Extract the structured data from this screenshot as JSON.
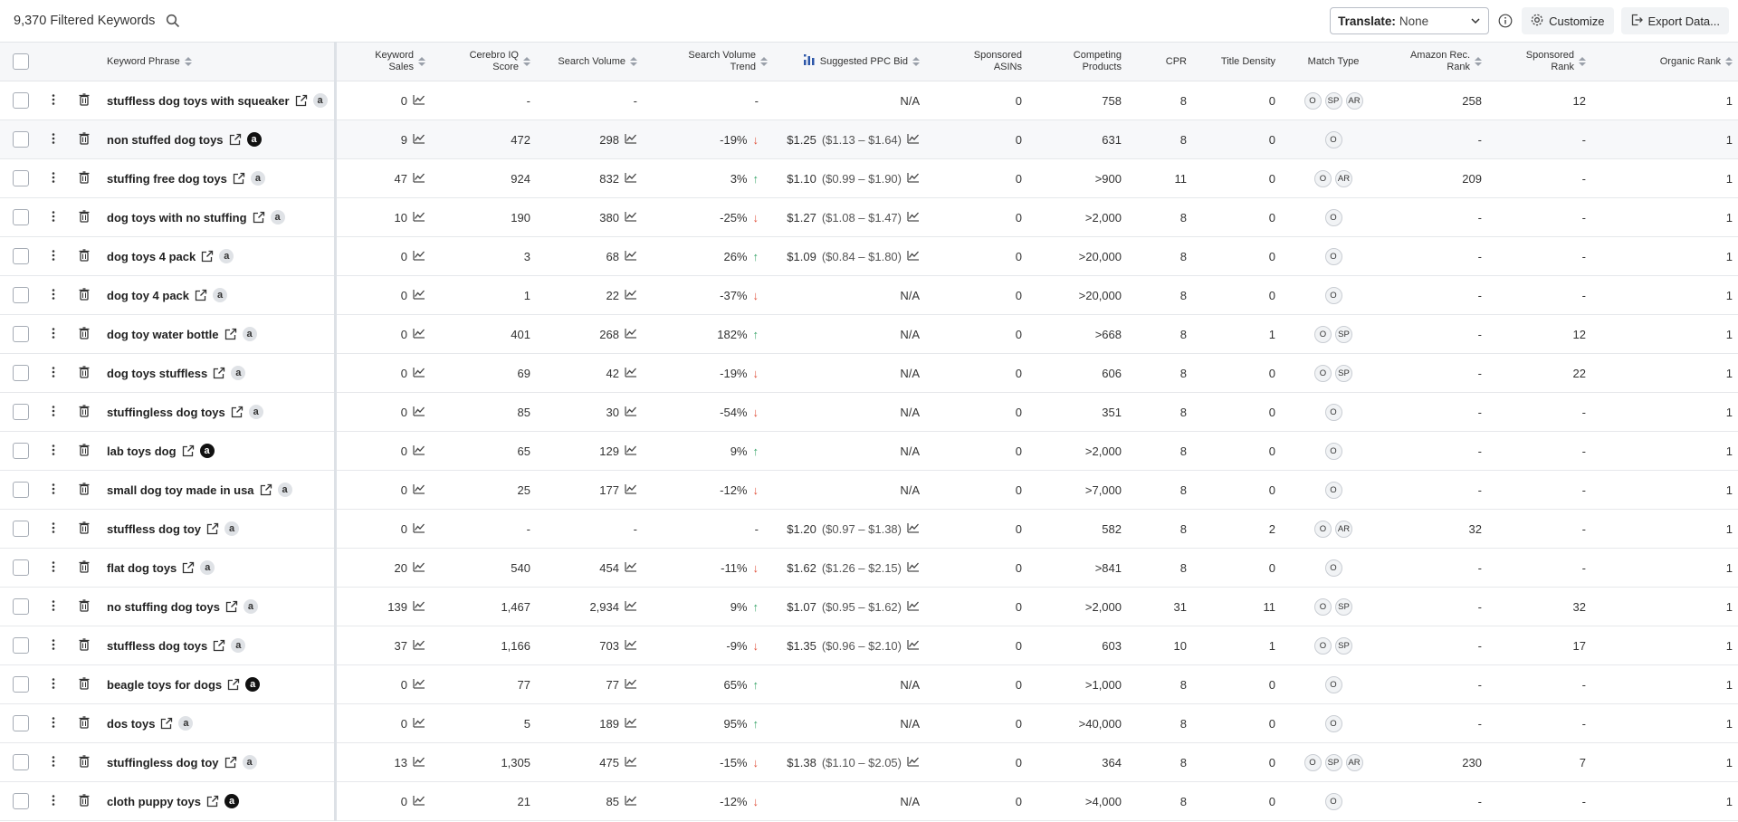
{
  "header": {
    "filtered_count": "9,370 Filtered Keywords",
    "translate_label": "Translate:",
    "translate_value": "None",
    "customize_label": "Customize",
    "export_label": "Export Data..."
  },
  "columns": {
    "keyword_phrase": "Keyword Phrase",
    "keyword_sales": [
      "Keyword",
      "Sales"
    ],
    "cerebro_iq": [
      "Cerebro IQ",
      "Score"
    ],
    "search_volume": "Search Volume",
    "sv_trend": [
      "Search Volume",
      "Trend"
    ],
    "ppc_bid": "Suggested PPC Bid",
    "sponsored_asins": [
      "Sponsored",
      "ASINs"
    ],
    "competing_products": [
      "Competing",
      "Products"
    ],
    "cpr": "CPR",
    "title_density": "Title Density",
    "match_type": "Match Type",
    "amazon_rec_rank": [
      "Amazon Rec.",
      "Rank"
    ],
    "sponsored_rank": [
      "Sponsored",
      "Rank"
    ],
    "organic_rank": "Organic Rank"
  },
  "rows": [
    {
      "keyword": "stuffless dog toys with squeaker",
      "amz": "light",
      "sales": "0",
      "iq": "-",
      "sv": "-",
      "trend": "-",
      "trend_dir": "",
      "bid": "N/A",
      "bid_range": "",
      "sp_asins": "0",
      "competing": "758",
      "cpr": "8",
      "title_density": "0",
      "match": [
        "O",
        "SP",
        "AR"
      ],
      "amz_rank": "258",
      "sp_rank": "12",
      "org_rank": "1"
    },
    {
      "keyword": "non stuffed dog toys",
      "amz": "dark",
      "sales": "9",
      "iq": "472",
      "sv": "298",
      "trend": "-19%",
      "trend_dir": "down",
      "bid": "$1.25",
      "bid_range": "($1.13 – $1.64)",
      "sp_asins": "0",
      "competing": "631",
      "cpr": "8",
      "title_density": "0",
      "match": [
        "O"
      ],
      "amz_rank": "-",
      "sp_rank": "-",
      "org_rank": "1"
    },
    {
      "keyword": "stuffing free dog toys",
      "amz": "light",
      "sales": "47",
      "iq": "924",
      "sv": "832",
      "trend": "3%",
      "trend_dir": "up",
      "bid": "$1.10",
      "bid_range": "($0.99 – $1.90)",
      "sp_asins": "0",
      "competing": ">900",
      "cpr": "11",
      "title_density": "0",
      "match": [
        "O",
        "AR"
      ],
      "amz_rank": "209",
      "sp_rank": "-",
      "org_rank": "1"
    },
    {
      "keyword": "dog toys with no stuffing",
      "amz": "light",
      "sales": "10",
      "iq": "190",
      "sv": "380",
      "trend": "-25%",
      "trend_dir": "down",
      "bid": "$1.27",
      "bid_range": "($1.08 – $1.47)",
      "sp_asins": "0",
      "competing": ">2,000",
      "cpr": "8",
      "title_density": "0",
      "match": [
        "O"
      ],
      "amz_rank": "-",
      "sp_rank": "-",
      "org_rank": "1"
    },
    {
      "keyword": "dog toys 4 pack",
      "amz": "light",
      "sales": "0",
      "iq": "3",
      "sv": "68",
      "trend": "26%",
      "trend_dir": "up",
      "bid": "$1.09",
      "bid_range": "($0.84 – $1.80)",
      "sp_asins": "0",
      "competing": ">20,000",
      "cpr": "8",
      "title_density": "0",
      "match": [
        "O"
      ],
      "amz_rank": "-",
      "sp_rank": "-",
      "org_rank": "1"
    },
    {
      "keyword": "dog toy 4 pack",
      "amz": "light",
      "sales": "0",
      "iq": "1",
      "sv": "22",
      "trend": "-37%",
      "trend_dir": "down",
      "bid": "N/A",
      "bid_range": "",
      "sp_asins": "0",
      "competing": ">20,000",
      "cpr": "8",
      "title_density": "0",
      "match": [
        "O"
      ],
      "amz_rank": "-",
      "sp_rank": "-",
      "org_rank": "1"
    },
    {
      "keyword": "dog toy water bottle",
      "amz": "light",
      "sales": "0",
      "iq": "401",
      "sv": "268",
      "trend": "182%",
      "trend_dir": "up",
      "bid": "N/A",
      "bid_range": "",
      "sp_asins": "0",
      "competing": ">668",
      "cpr": "8",
      "title_density": "1",
      "match": [
        "O",
        "SP"
      ],
      "amz_rank": "-",
      "sp_rank": "12",
      "org_rank": "1"
    },
    {
      "keyword": "dog toys stuffless",
      "amz": "light",
      "sales": "0",
      "iq": "69",
      "sv": "42",
      "trend": "-19%",
      "trend_dir": "down",
      "bid": "N/A",
      "bid_range": "",
      "sp_asins": "0",
      "competing": "606",
      "cpr": "8",
      "title_density": "0",
      "match": [
        "O",
        "SP"
      ],
      "amz_rank": "-",
      "sp_rank": "22",
      "org_rank": "1"
    },
    {
      "keyword": "stuffingless dog toys",
      "amz": "light",
      "sales": "0",
      "iq": "85",
      "sv": "30",
      "trend": "-54%",
      "trend_dir": "down",
      "bid": "N/A",
      "bid_range": "",
      "sp_asins": "0",
      "competing": "351",
      "cpr": "8",
      "title_density": "0",
      "match": [
        "O"
      ],
      "amz_rank": "-",
      "sp_rank": "-",
      "org_rank": "1"
    },
    {
      "keyword": "lab toys dog",
      "amz": "dark",
      "sales": "0",
      "iq": "65",
      "sv": "129",
      "trend": "9%",
      "trend_dir": "up",
      "bid": "N/A",
      "bid_range": "",
      "sp_asins": "0",
      "competing": ">2,000",
      "cpr": "8",
      "title_density": "0",
      "match": [
        "O"
      ],
      "amz_rank": "-",
      "sp_rank": "-",
      "org_rank": "1"
    },
    {
      "keyword": "small dog toy made in usa",
      "amz": "light",
      "sales": "0",
      "iq": "25",
      "sv": "177",
      "trend": "-12%",
      "trend_dir": "down",
      "bid": "N/A",
      "bid_range": "",
      "sp_asins": "0",
      "competing": ">7,000",
      "cpr": "8",
      "title_density": "0",
      "match": [
        "O"
      ],
      "amz_rank": "-",
      "sp_rank": "-",
      "org_rank": "1"
    },
    {
      "keyword": "stuffless dog toy",
      "amz": "light",
      "sales": "0",
      "iq": "-",
      "sv": "-",
      "trend": "-",
      "trend_dir": "",
      "bid": "$1.20",
      "bid_range": "($0.97 – $1.38)",
      "sp_asins": "0",
      "competing": "582",
      "cpr": "8",
      "title_density": "2",
      "match": [
        "O",
        "AR"
      ],
      "amz_rank": "32",
      "sp_rank": "-",
      "org_rank": "1"
    },
    {
      "keyword": "flat dog toys",
      "amz": "light",
      "sales": "20",
      "iq": "540",
      "sv": "454",
      "trend": "-11%",
      "trend_dir": "down",
      "bid": "$1.62",
      "bid_range": "($1.26 – $2.15)",
      "sp_asins": "0",
      "competing": ">841",
      "cpr": "8",
      "title_density": "0",
      "match": [
        "O"
      ],
      "amz_rank": "-",
      "sp_rank": "-",
      "org_rank": "1"
    },
    {
      "keyword": "no stuffing dog toys",
      "amz": "light",
      "sales": "139",
      "iq": "1,467",
      "sv": "2,934",
      "trend": "9%",
      "trend_dir": "up",
      "bid": "$1.07",
      "bid_range": "($0.95 – $1.62)",
      "sp_asins": "0",
      "competing": ">2,000",
      "cpr": "31",
      "title_density": "11",
      "match": [
        "O",
        "SP"
      ],
      "amz_rank": "-",
      "sp_rank": "32",
      "org_rank": "1"
    },
    {
      "keyword": "stuffless dog toys",
      "amz": "light",
      "sales": "37",
      "iq": "1,166",
      "sv": "703",
      "trend": "-9%",
      "trend_dir": "down",
      "bid": "$1.35",
      "bid_range": "($0.96 – $2.10)",
      "sp_asins": "0",
      "competing": "603",
      "cpr": "10",
      "title_density": "1",
      "match": [
        "O",
        "SP"
      ],
      "amz_rank": "-",
      "sp_rank": "17",
      "org_rank": "1"
    },
    {
      "keyword": "beagle toys for dogs",
      "amz": "dark",
      "sales": "0",
      "iq": "77",
      "sv": "77",
      "trend": "65%",
      "trend_dir": "up",
      "bid": "N/A",
      "bid_range": "",
      "sp_asins": "0",
      "competing": ">1,000",
      "cpr": "8",
      "title_density": "0",
      "match": [
        "O"
      ],
      "amz_rank": "-",
      "sp_rank": "-",
      "org_rank": "1"
    },
    {
      "keyword": "dos toys",
      "amz": "light",
      "sales": "0",
      "iq": "5",
      "sv": "189",
      "trend": "95%",
      "trend_dir": "up",
      "bid": "N/A",
      "bid_range": "",
      "sp_asins": "0",
      "competing": ">40,000",
      "cpr": "8",
      "title_density": "0",
      "match": [
        "O"
      ],
      "amz_rank": "-",
      "sp_rank": "-",
      "org_rank": "1"
    },
    {
      "keyword": "stuffingless dog toy",
      "amz": "light",
      "sales": "13",
      "iq": "1,305",
      "sv": "475",
      "trend": "-15%",
      "trend_dir": "down",
      "bid": "$1.38",
      "bid_range": "($1.10 – $2.05)",
      "sp_asins": "0",
      "competing": "364",
      "cpr": "8",
      "title_density": "0",
      "match": [
        "O",
        "SP",
        "AR"
      ],
      "amz_rank": "230",
      "sp_rank": "7",
      "org_rank": "1"
    },
    {
      "keyword": "cloth puppy toys",
      "amz": "dark",
      "sales": "0",
      "iq": "21",
      "sv": "85",
      "trend": "-12%",
      "trend_dir": "down",
      "bid": "N/A",
      "bid_range": "",
      "sp_asins": "0",
      "competing": ">4,000",
      "cpr": "8",
      "title_density": "0",
      "match": [
        "O"
      ],
      "amz_rank": "-",
      "sp_rank": "-",
      "org_rank": "1"
    }
  ]
}
